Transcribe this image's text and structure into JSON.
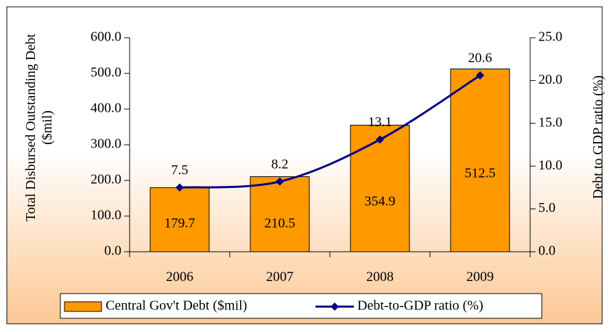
{
  "chart_data": {
    "type": "bar_line",
    "y_label": "Total Disbursed Outstanding Debt ($mil)",
    "y2_label": "Debt to GDP ratio (%)",
    "categories": [
      "2006",
      "2007",
      "2008",
      "2009"
    ],
    "series": [
      {
        "name": "Central Gov't Debt ($mil)",
        "type": "bar",
        "color": "#ff9900",
        "values": [
          179.7,
          210.5,
          354.9,
          512.5
        ]
      },
      {
        "name": "Debt-to-GDP ratio (%)",
        "type": "line",
        "color": "#000080",
        "axis": "y2",
        "values": [
          7.5,
          8.2,
          13.1,
          20.6
        ]
      }
    ],
    "ylim": [
      0,
      600
    ],
    "yticks": [
      {
        "value": 0,
        "label": "0.0"
      },
      {
        "value": 100,
        "label": "100.0"
      },
      {
        "value": 200,
        "label": "200.0"
      },
      {
        "value": 300,
        "label": "300.0"
      },
      {
        "value": 400,
        "label": "400.0"
      },
      {
        "value": 500,
        "label": "500.0"
      },
      {
        "value": 600,
        "label": "600.0"
      }
    ],
    "y2lim": [
      0,
      25
    ],
    "y2ticks": [
      {
        "value": 0,
        "label": "0.0"
      },
      {
        "value": 5,
        "label": "5.0"
      },
      {
        "value": 10,
        "label": "10.0"
      },
      {
        "value": 15,
        "label": "15.0"
      },
      {
        "value": 20,
        "label": "20.0"
      },
      {
        "value": 25,
        "label": "25.0"
      }
    ],
    "legend": "bottom"
  }
}
